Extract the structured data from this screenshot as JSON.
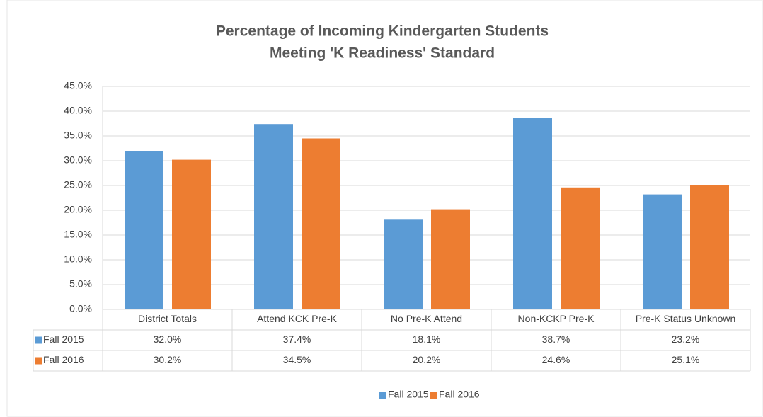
{
  "chart_data": {
    "type": "bar",
    "title": [
      "Percentage of Incoming Kindergarten Students",
      "Meeting 'K Readiness' Standard"
    ],
    "categories": [
      "District Totals",
      "Attend KCK Pre-K",
      "No Pre-K Attend",
      "Non-KCKP Pre-K",
      "Pre-K Status Unknown"
    ],
    "series": [
      {
        "name": "Fall 2015",
        "color": "#5b9bd5",
        "values": [
          32.0,
          37.4,
          18.1,
          38.7,
          23.2
        ],
        "value_labels": [
          "32.0%",
          "37.4%",
          "18.1%",
          "38.7%",
          "23.2%"
        ]
      },
      {
        "name": "Fall 2016",
        "color": "#ed7d31",
        "values": [
          30.2,
          34.5,
          20.2,
          24.6,
          25.1
        ],
        "value_labels": [
          "30.2%",
          "34.5%",
          "20.2%",
          "24.6%",
          "25.1%"
        ]
      }
    ],
    "ylim": [
      0,
      45
    ],
    "yticks": [
      {
        "value": 0,
        "label": "0.0%"
      },
      {
        "value": 5,
        "label": "5.0%"
      },
      {
        "value": 10,
        "label": "10.0%"
      },
      {
        "value": 15,
        "label": "15.0%"
      },
      {
        "value": 20,
        "label": "20.0%"
      },
      {
        "value": 25,
        "label": "25.0%"
      },
      {
        "value": 30,
        "label": "30.0%"
      },
      {
        "value": 35,
        "label": "35.0%"
      },
      {
        "value": 40,
        "label": "40.0%"
      },
      {
        "value": 45,
        "label": "45.0%"
      }
    ],
    "grid": true,
    "legend": "bottom"
  }
}
